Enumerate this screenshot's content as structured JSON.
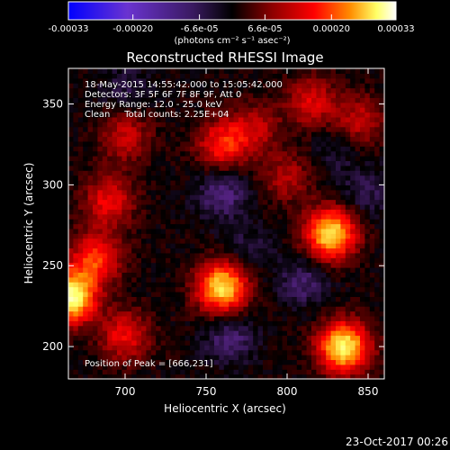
{
  "chart_data": {
    "type": "heatmap",
    "title": "Reconstructed RHESSI Image",
    "xlabel": "Heliocentric X (arcsec)",
    "ylabel": "Heliocentric Y (arcsec)",
    "xlim": [
      665,
      860
    ],
    "ylim": [
      180,
      372
    ],
    "xticks": [
      700,
      750,
      800,
      850
    ],
    "yticks": [
      200,
      250,
      300,
      350
    ],
    "x_tick_labels": [
      "700",
      "750",
      "800",
      "850"
    ],
    "y_tick_labels": [
      "200",
      "250",
      "300",
      "350"
    ],
    "colorbar": {
      "range": [
        -0.00033,
        0.00033
      ],
      "ticks": [
        -0.00033,
        -0.0002,
        -6.6e-05,
        6.6e-05,
        0.0002,
        0.00033
      ],
      "tick_labels": [
        "-0.00033",
        "-0.00020",
        "-6.6e-05",
        "6.6e-05",
        "0.00020",
        "0.00033"
      ],
      "units": "(photons cm⁻² s⁻¹ asec⁻²)",
      "colors": [
        "#0000ff",
        "#7a2bb8",
        "#4a1f73",
        "#000000",
        "#8b0000",
        "#ff0000",
        "#ff8c00",
        "#ffff66",
        "#ffffff"
      ]
    },
    "annotations": [
      "18-May-2015 14:55:42.000 to 15:05:42.000",
      "Detectors: 3F 5F 6F 7F 8F 9F, Att 0",
      "Energy Range: 12.0 - 25.0 keV",
      "Clean     Total counts: 2.25E+04"
    ],
    "peak_label": "Position of Peak = [666,231]",
    "sources": [
      {
        "x": 760,
        "y": 325,
        "value": 0.00014
      },
      {
        "x": 690,
        "y": 290,
        "value": 0.00012
      },
      {
        "x": 700,
        "y": 330,
        "value": 9e-05
      },
      {
        "x": 780,
        "y": 335,
        "value": 8e-05
      },
      {
        "x": 815,
        "y": 352,
        "value": 0.0001
      },
      {
        "x": 827,
        "y": 270,
        "value": 0.00028
      },
      {
        "x": 760,
        "y": 237,
        "value": 0.00028
      },
      {
        "x": 682,
        "y": 255,
        "value": 0.00016
      },
      {
        "x": 666,
        "y": 231,
        "value": 0.00033
      },
      {
        "x": 835,
        "y": 200,
        "value": 0.0003
      },
      {
        "x": 700,
        "y": 207,
        "value": 0.00012
      },
      {
        "x": 845,
        "y": 340,
        "value": 8e-05
      },
      {
        "x": 800,
        "y": 305,
        "value": 7e-05
      }
    ],
    "negative_regions": [
      {
        "x": 760,
        "y": 295,
        "value": -0.00013
      },
      {
        "x": 700,
        "y": 360,
        "value": -8e-05
      },
      {
        "x": 775,
        "y": 260,
        "value": -8e-05
      },
      {
        "x": 765,
        "y": 205,
        "value": -0.00012
      },
      {
        "x": 810,
        "y": 240,
        "value": -0.00011
      },
      {
        "x": 850,
        "y": 295,
        "value": -9e-05
      },
      {
        "x": 830,
        "y": 320,
        "value": -7e-05
      }
    ]
  },
  "footer": {
    "timestamp": "23-Oct-2017 00:26"
  }
}
